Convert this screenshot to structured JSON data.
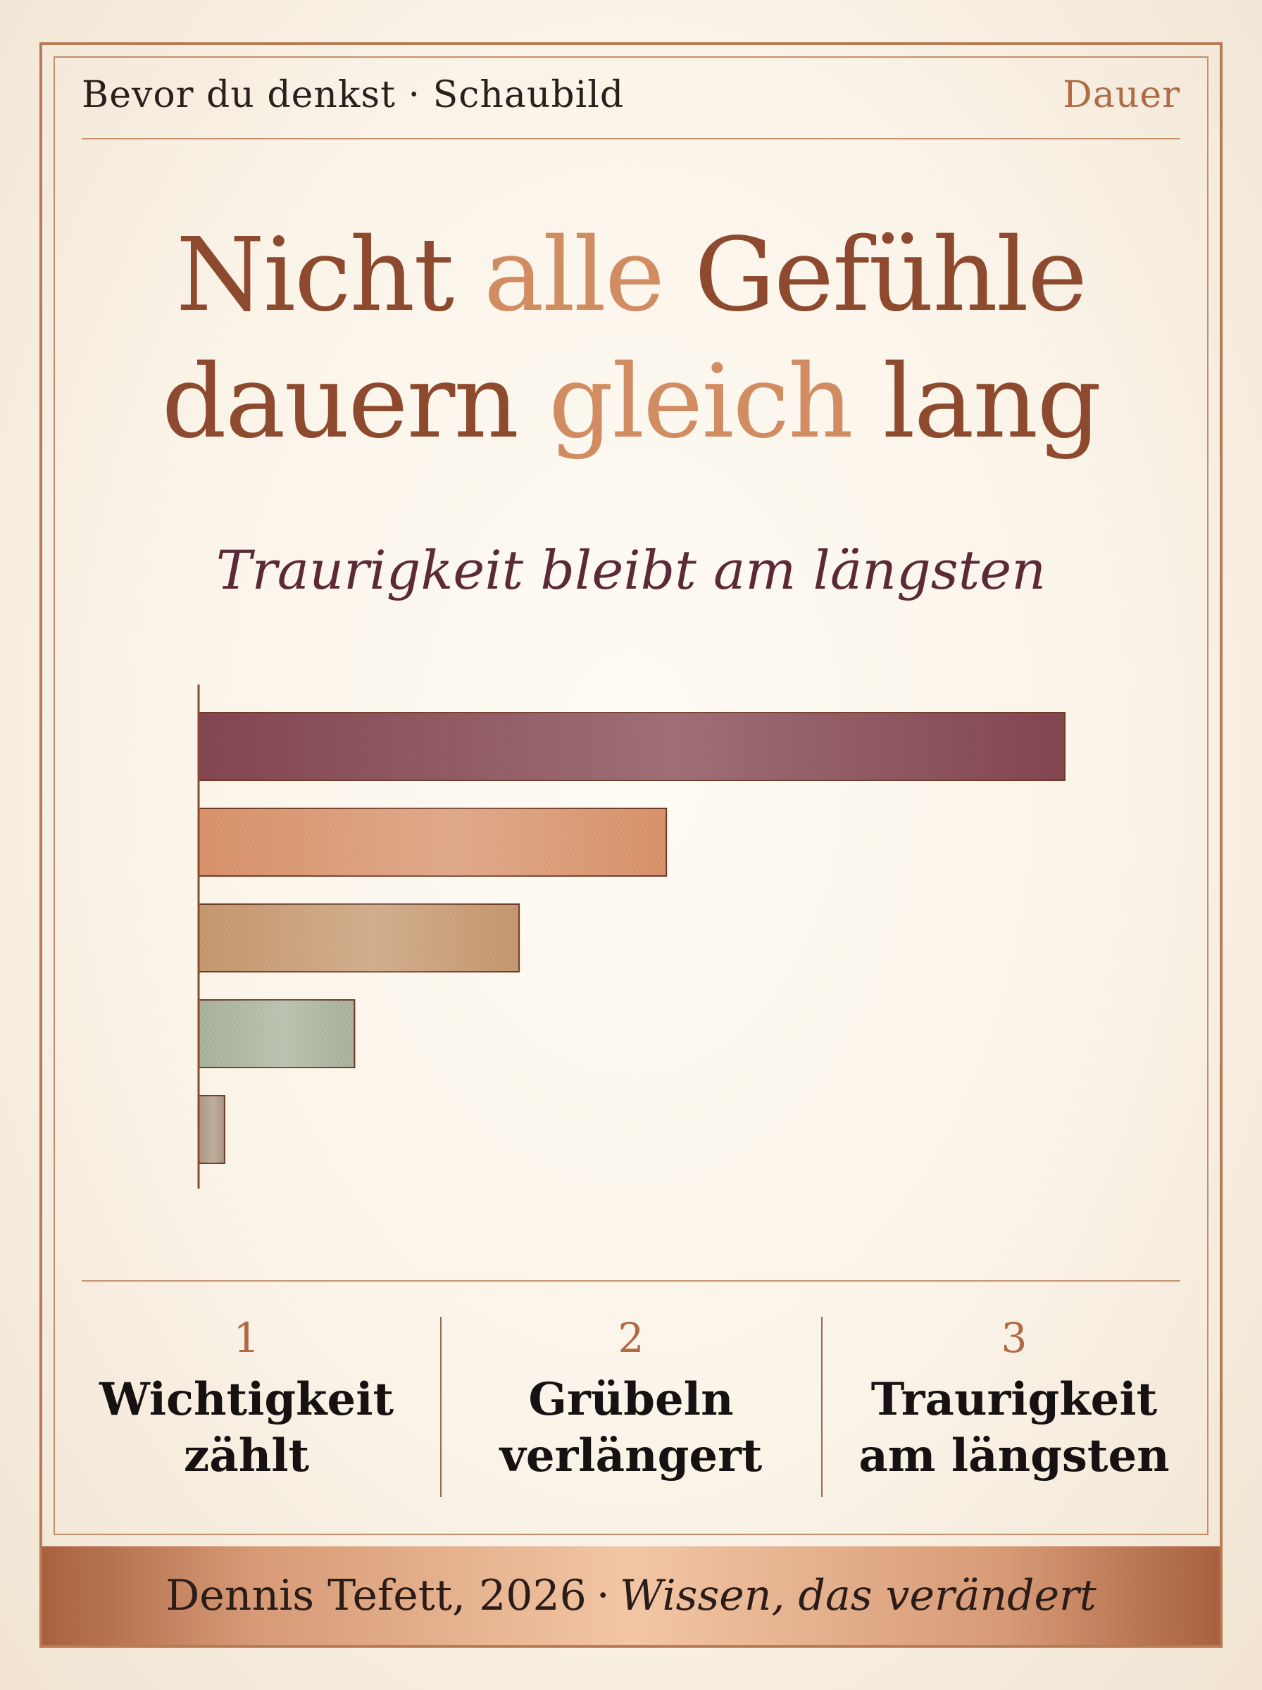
{
  "header": {
    "left": "Bevor du denkst · Schaubild",
    "right": "Dauer"
  },
  "title": {
    "line1_a": "Nicht ",
    "line1_b": "alle",
    "line1_c": " Gefühle",
    "line2_a": "dauern ",
    "line2_b": "gleich",
    "line2_c": " lang"
  },
  "subtitle": "Traurigkeit bleibt am längsten",
  "chart_data": {
    "type": "bar",
    "orientation": "horizontal",
    "categories": [
      "",
      "",
      "",
      "",
      ""
    ],
    "values": [
      100,
      54,
      37,
      18,
      3
    ],
    "colors": [
      "#844650",
      "#d9936b",
      "#c6996f",
      "#a9b39d",
      "#ad9882"
    ],
    "title": "",
    "xlabel": "",
    "ylabel": "",
    "xlim": [
      0,
      100
    ],
    "grid": false,
    "legend": "none"
  },
  "points": [
    {
      "num": "1",
      "text_line1": "Wichtigkeit",
      "text_line2": "zählt"
    },
    {
      "num": "2",
      "text_line1": "Grübeln",
      "text_line2": "verlängert"
    },
    {
      "num": "3",
      "text_line1": "Traurigkeit",
      "text_line2": "am längsten"
    }
  ],
  "footer": {
    "author": "Dennis Tefett, 2026",
    "separator": "·",
    "motto": "Wissen, das verändert"
  },
  "colors": {
    "accent": "#b06a44",
    "frame": "#b97a56",
    "subtitle": "#5c2a36",
    "title_dark": "#8d4a2e",
    "title_light": "#d28c61"
  }
}
